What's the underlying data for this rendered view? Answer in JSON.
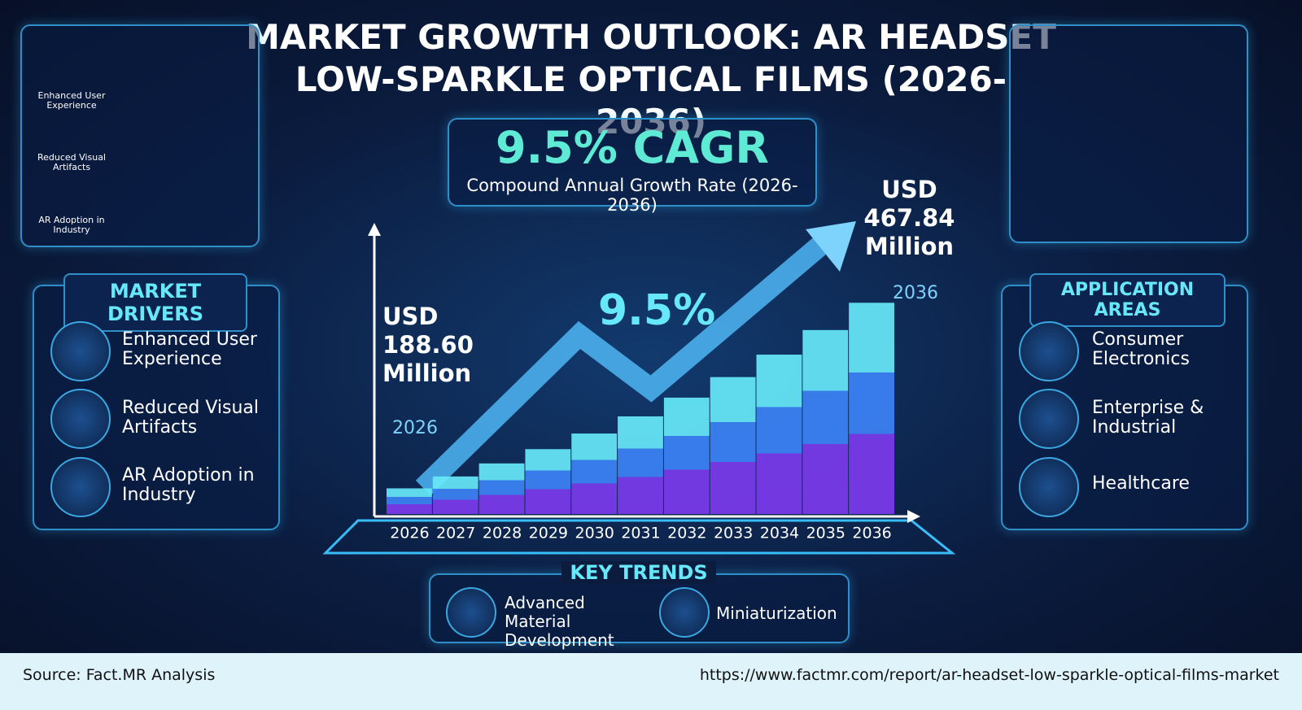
{
  "header": {
    "title": "MARKET GROWTH OUTLOOK: AR HEADSET LOW-SPARKLE OPTICAL FILMS (2026-2036)"
  },
  "cagr": {
    "headline": "9.5% CAGR",
    "caption": "Compound Annual Growth Rate (2026-2036)"
  },
  "corner_icons": [
    "Enhanced User Experience",
    "Reduced Visual Artifacts",
    "AR Adoption in Industry"
  ],
  "market_drivers": {
    "title": "MARKET DRIVERS",
    "items": [
      "Enhanced User Experience",
      "Reduced Visual Artifacts",
      "AR Adoption in Industry"
    ]
  },
  "application_areas": {
    "title": "APPLICATION AREAS",
    "items": [
      "Consumer Electronics",
      "Enterprise & Industrial",
      "Healthcare"
    ]
  },
  "key_trends": {
    "title": "KEY TRENDS",
    "items": [
      "Advanced Material Development",
      "Miniaturization"
    ]
  },
  "footer": {
    "source": "Source: Fact.MR Analysis",
    "url": "https://www.factmr.com/report/ar-headset-low-sparkle-optical-films-market"
  },
  "chart_data": {
    "type": "bar",
    "categories": [
      "2026",
      "2027",
      "2028",
      "2029",
      "2030",
      "2031",
      "2032",
      "2033",
      "2034",
      "2035",
      "2036"
    ],
    "values": [
      188.6,
      206.5,
      226.1,
      247.6,
      271.1,
      296.9,
      325.1,
      356.0,
      389.8,
      426.8,
      467.84
    ],
    "value_labels": [
      "USD 188.60 Million",
      null,
      null,
      null,
      null,
      null,
      null,
      null,
      null,
      null,
      "USD 467.84 Million"
    ],
    "growth_label": "9.5%",
    "ylim": [
      150,
      500
    ],
    "colors": [
      "#67e8f9",
      "#3b82f6",
      "#7c3aed"
    ]
  }
}
